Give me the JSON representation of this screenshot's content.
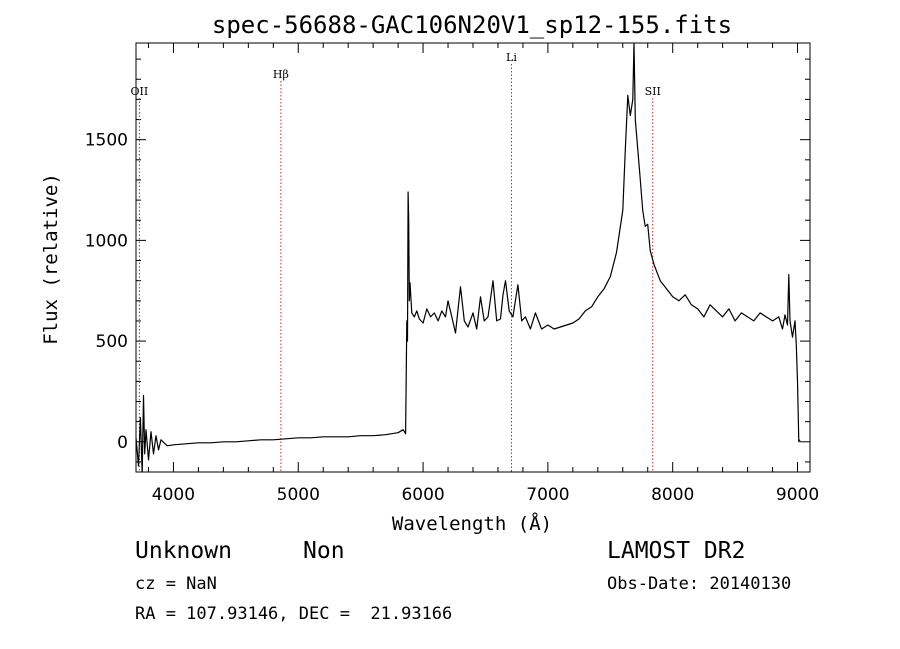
{
  "chart_data": {
    "type": "line",
    "title": "spec-56688-GAC106N20V1_sp12-155.fits",
    "xlabel": "Wavelength (Å)",
    "ylabel": "Flux (relative)",
    "xlim": [
      3700,
      9100
    ],
    "ylim": [
      -150,
      1980
    ],
    "xticks": [
      4000,
      5000,
      6000,
      7000,
      8000,
      9000
    ],
    "yticks": [
      0,
      500,
      1000,
      1500
    ],
    "grid": false,
    "series_color": "#000000",
    "line_marker_color": "#b03020",
    "line_markers": [
      {
        "label": "OII",
        "x": 3727
      },
      {
        "label": "Hβ",
        "x": 4861
      },
      {
        "label": "Li",
        "x": 6708
      },
      {
        "label": "SII",
        "x": 7840
      }
    ],
    "spectrum": [
      [
        3700,
        20
      ],
      [
        3720,
        -120
      ],
      [
        3735,
        120
      ],
      [
        3750,
        -160
      ],
      [
        3760,
        230
      ],
      [
        3770,
        -60
      ],
      [
        3780,
        60
      ],
      [
        3800,
        -90
      ],
      [
        3820,
        50
      ],
      [
        3840,
        -60
      ],
      [
        3860,
        30
      ],
      [
        3880,
        -40
      ],
      [
        3900,
        10
      ],
      [
        3950,
        -20
      ],
      [
        4000,
        -15
      ],
      [
        4100,
        -10
      ],
      [
        4200,
        -5
      ],
      [
        4300,
        -5
      ],
      [
        4400,
        0
      ],
      [
        4500,
        0
      ],
      [
        4600,
        5
      ],
      [
        4700,
        10
      ],
      [
        4800,
        10
      ],
      [
        4900,
        15
      ],
      [
        5000,
        20
      ],
      [
        5100,
        20
      ],
      [
        5200,
        25
      ],
      [
        5300,
        25
      ],
      [
        5400,
        25
      ],
      [
        5500,
        30
      ],
      [
        5600,
        30
      ],
      [
        5700,
        35
      ],
      [
        5800,
        45
      ],
      [
        5840,
        60
      ],
      [
        5860,
        40
      ],
      [
        5870,
        600
      ],
      [
        5875,
        500
      ],
      [
        5880,
        1240
      ],
      [
        5885,
        1100
      ],
      [
        5890,
        700
      ],
      [
        5895,
        790
      ],
      [
        5910,
        640
      ],
      [
        5930,
        620
      ],
      [
        5950,
        650
      ],
      [
        5970,
        610
      ],
      [
        6000,
        590
      ],
      [
        6030,
        660
      ],
      [
        6060,
        620
      ],
      [
        6090,
        640
      ],
      [
        6120,
        600
      ],
      [
        6150,
        650
      ],
      [
        6180,
        620
      ],
      [
        6200,
        700
      ],
      [
        6230,
        620
      ],
      [
        6260,
        540
      ],
      [
        6300,
        770
      ],
      [
        6330,
        600
      ],
      [
        6360,
        570
      ],
      [
        6400,
        640
      ],
      [
        6430,
        560
      ],
      [
        6460,
        720
      ],
      [
        6490,
        600
      ],
      [
        6520,
        620
      ],
      [
        6560,
        800
      ],
      [
        6590,
        600
      ],
      [
        6620,
        610
      ],
      [
        6640,
        730
      ],
      [
        6660,
        800
      ],
      [
        6690,
        650
      ],
      [
        6720,
        620
      ],
      [
        6760,
        780
      ],
      [
        6790,
        600
      ],
      [
        6820,
        620
      ],
      [
        6860,
        560
      ],
      [
        6900,
        640
      ],
      [
        6950,
        560
      ],
      [
        7000,
        580
      ],
      [
        7050,
        560
      ],
      [
        7100,
        570
      ],
      [
        7150,
        580
      ],
      [
        7200,
        590
      ],
      [
        7250,
        610
      ],
      [
        7300,
        650
      ],
      [
        7350,
        670
      ],
      [
        7400,
        720
      ],
      [
        7450,
        760
      ],
      [
        7500,
        820
      ],
      [
        7550,
        940
      ],
      [
        7600,
        1150
      ],
      [
        7620,
        1450
      ],
      [
        7640,
        1720
      ],
      [
        7660,
        1620
      ],
      [
        7680,
        1700
      ],
      [
        7690,
        1980
      ],
      [
        7700,
        1600
      ],
      [
        7720,
        1450
      ],
      [
        7740,
        1300
      ],
      [
        7760,
        1150
      ],
      [
        7780,
        1070
      ],
      [
        7800,
        1080
      ],
      [
        7820,
        950
      ],
      [
        7850,
        880
      ],
      [
        7900,
        800
      ],
      [
        7950,
        760
      ],
      [
        8000,
        720
      ],
      [
        8050,
        700
      ],
      [
        8100,
        730
      ],
      [
        8150,
        680
      ],
      [
        8200,
        660
      ],
      [
        8250,
        620
      ],
      [
        8300,
        680
      ],
      [
        8350,
        650
      ],
      [
        8400,
        620
      ],
      [
        8450,
        660
      ],
      [
        8500,
        600
      ],
      [
        8550,
        640
      ],
      [
        8600,
        620
      ],
      [
        8650,
        600
      ],
      [
        8700,
        640
      ],
      [
        8750,
        620
      ],
      [
        8800,
        600
      ],
      [
        8850,
        620
      ],
      [
        8880,
        560
      ],
      [
        8900,
        630
      ],
      [
        8920,
        580
      ],
      [
        8930,
        830
      ],
      [
        8940,
        600
      ],
      [
        8960,
        520
      ],
      [
        8980,
        600
      ],
      [
        8990,
        480
      ],
      [
        9000,
        300
      ],
      [
        9010,
        0
      ],
      [
        9020,
        10
      ]
    ]
  },
  "info": {
    "class": "Unknown",
    "subclass": "Non",
    "survey": "LAMOST DR2",
    "cz": "cz = NaN",
    "obs_date": "Obs-Date: 20140130",
    "coords": "RA = 107.93146, DEC =  21.93166"
  }
}
